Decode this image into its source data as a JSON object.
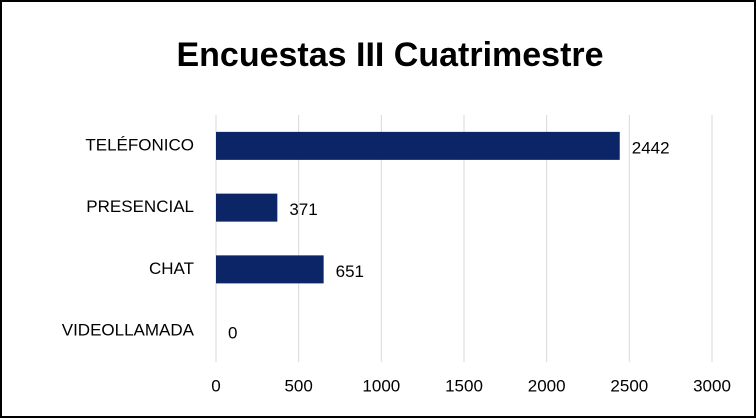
{
  "chart_data": {
    "type": "bar",
    "orientation": "horizontal",
    "title": "Encuestas III Cuatrimestre",
    "categories": [
      "TELÉFONICO",
      "PRESENCIAL",
      "CHAT",
      "VIDEOLLAMADA"
    ],
    "values": [
      2442,
      371,
      651,
      0
    ],
    "color": "#0b2566",
    "xlim": [
      0,
      3000
    ],
    "xticks": [
      0,
      500,
      1000,
      1500,
      2000,
      2500,
      3000
    ],
    "grid": true
  }
}
